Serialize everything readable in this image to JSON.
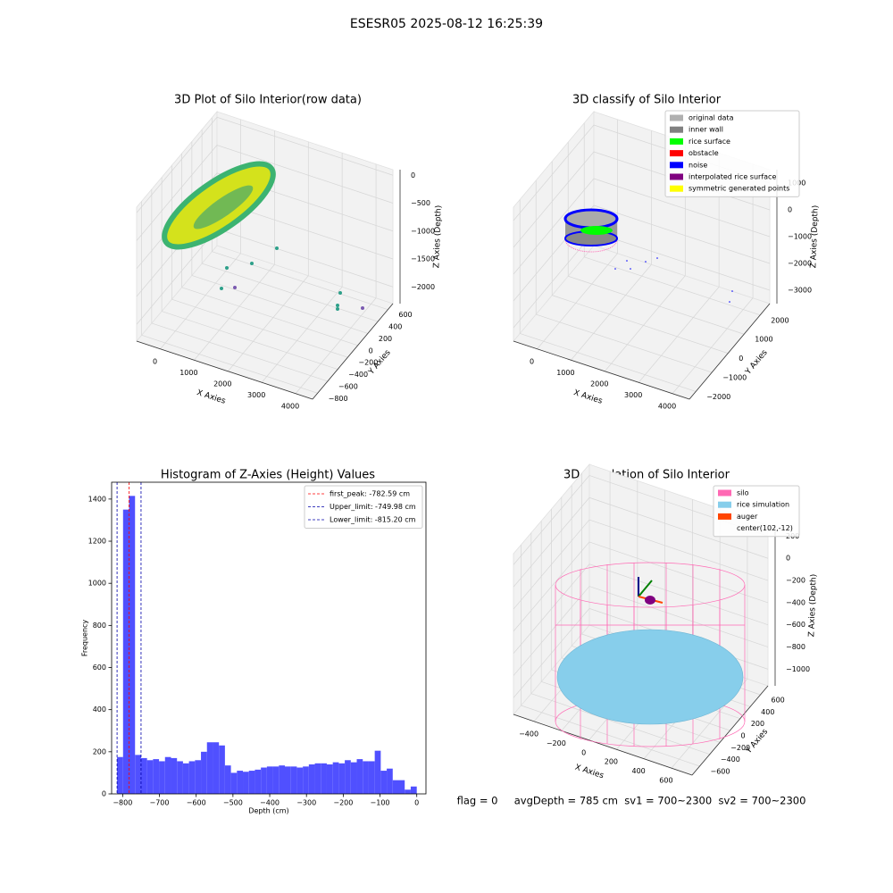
{
  "title": "ESESR05 2025-08-12 16:25:39",
  "footer": "flag = 0     avgDepth = 785 cm  sv1 = 700~2300  sv2 = 700~2300",
  "chart_data": [
    {
      "type": "scatter3d",
      "title": "3D Plot of Silo Interior(row data)",
      "xlabel": "X Axies",
      "ylabel": "Y Axies",
      "zlabel": "Z Axies (Depth)",
      "xlim": [
        -700,
        4500
      ],
      "ylim": [
        -900,
        700
      ],
      "zlim": [
        -2300,
        100
      ],
      "xticks": [
        0,
        1000,
        2000,
        3000,
        4000
      ],
      "yticks": [
        {
          "value": -800,
          "label": "−800"
        },
        {
          "value": -600,
          "label": "−600"
        },
        {
          "value": -400,
          "label": "−400"
        },
        {
          "value": -200,
          "label": "−200"
        },
        0,
        200,
        400,
        600
      ],
      "zticks": [
        0,
        {
          "value": -500,
          "label": "−500"
        },
        {
          "value": -1000,
          "label": "−1000"
        },
        {
          "value": -1500,
          "label": "−1500"
        },
        {
          "value": -2000,
          "label": "−2000"
        }
      ]
    },
    {
      "type": "scatter3d",
      "title": "3D classify of Silo Interior",
      "xlabel": "X Axies",
      "ylabel": "Y Axies",
      "zlabel": "Z Axies (Depth)",
      "xlim": [
        -700,
        4500
      ],
      "ylim": [
        -2400,
        2600
      ],
      "zlim": [
        -3500,
        1500
      ],
      "xticks": [
        0,
        1000,
        2000,
        3000,
        4000
      ],
      "yticks": [
        {
          "value": -2000,
          "label": "−2000"
        },
        {
          "value": -1000,
          "label": "−1000"
        },
        0,
        1000,
        2000
      ],
      "zticks": [
        1000,
        0,
        {
          "value": -1000,
          "label": "−1000"
        },
        {
          "value": -2000,
          "label": "−2000"
        },
        {
          "value": -3000,
          "label": "−3000"
        }
      ],
      "series": [
        {
          "name": "original data",
          "color": "#b0b0b0"
        },
        {
          "name": "inner wall",
          "color": "#808080"
        },
        {
          "name": "rice surface",
          "color": "#00ff00"
        },
        {
          "name": "obstacle",
          "color": "#ff0000"
        },
        {
          "name": "noise",
          "color": "#0000ff"
        },
        {
          "name": "interpolated rice surface",
          "color": "#800080"
        },
        {
          "name": "symmetric generated points",
          "color": "#ffff00"
        }
      ]
    },
    {
      "type": "histogram",
      "title": "Histogram of Z-Axies (Height) Values",
      "xlabel": "Depth (cm)",
      "ylabel": "Frequency",
      "color": "#5050ff",
      "xlim": [
        -830,
        25
      ],
      "ylim": [
        0,
        1480
      ],
      "xticks": [
        {
          "value": -800,
          "label": "−800"
        },
        {
          "value": -700,
          "label": "−700"
        },
        {
          "value": -600,
          "label": "−600"
        },
        {
          "value": -500,
          "label": "−500"
        },
        {
          "value": -400,
          "label": "−400"
        },
        {
          "value": -300,
          "label": "−300"
        },
        {
          "value": -200,
          "label": "−200"
        },
        {
          "value": -100,
          "label": "−100"
        },
        0
      ],
      "yticks": [
        0,
        200,
        400,
        600,
        800,
        1000,
        1200,
        1400
      ],
      "bins": [
        -815.2,
        -798.9,
        -782.6,
        -766.3,
        -750,
        -733.7,
        -717.4,
        -701.1,
        -684.8,
        -668.5,
        -652.2,
        -635.9,
        -619.6,
        -603.3,
        -587,
        -570.7,
        -554.4,
        -538.1,
        -521.8,
        -505.5,
        -489.2,
        -472.9,
        -456.6,
        -440.3,
        -424,
        -407.7,
        -391.4,
        -375.1,
        -358.8,
        -342.5,
        -326.2,
        -309.9,
        -293.6,
        -277.3,
        -261,
        -244.7,
        -228.4,
        -212.1,
        -195.8,
        -179.5,
        -163.2,
        -146.9,
        -130.6,
        -114.3,
        -98,
        -81.7,
        -65.4,
        -49.1,
        -32.8,
        -16.5,
        0
      ],
      "values": [
        175,
        1350,
        1415,
        185,
        170,
        160,
        165,
        155,
        175,
        170,
        155,
        145,
        155,
        160,
        200,
        245,
        245,
        230,
        135,
        100,
        110,
        105,
        110,
        115,
        125,
        130,
        130,
        135,
        130,
        130,
        125,
        130,
        140,
        145,
        145,
        140,
        150,
        145,
        160,
        150,
        165,
        155,
        155,
        205,
        110,
        120,
        65,
        65,
        20,
        35
      ],
      "vlines": [
        {
          "name": "first_peak: -782.59 cm",
          "value": -782.59,
          "color": "#ff0000"
        },
        {
          "name": "Upper_limit: -749.98 cm",
          "value": -749.98,
          "color": "#0000aa"
        },
        {
          "name": "Lower_limit: -815.20 cm",
          "value": -815.2,
          "color": "#0000aa"
        }
      ]
    },
    {
      "type": "scatter3d",
      "title": "3D simulation of Silo Interior",
      "xlabel": "X Axies",
      "ylabel": "Y Axies",
      "zlabel": "Z Axies (Depth)",
      "xlim": [
        -550,
        750
      ],
      "ylim": [
        -750,
        750
      ],
      "zlim": [
        -1150,
        300
      ],
      "xticks": [
        {
          "value": -400,
          "label": "−400"
        },
        {
          "value": -200,
          "label": "−200"
        },
        0,
        200,
        400,
        600
      ],
      "yticks": [
        {
          "value": -600,
          "label": "−600"
        },
        {
          "value": -400,
          "label": "−400"
        },
        {
          "value": -200,
          "label": "−200"
        },
        0,
        200,
        400,
        600
      ],
      "zticks": [
        200,
        0,
        {
          "value": -200,
          "label": "−200"
        },
        {
          "value": -400,
          "label": "−400"
        },
        {
          "value": -600,
          "label": "−600"
        },
        {
          "value": -800,
          "label": "−800"
        },
        {
          "value": -1000,
          "label": "−1000"
        }
      ],
      "series": [
        {
          "name": "silo",
          "color": "#ff69b4"
        },
        {
          "name": "rice simulation",
          "color": "#87ceeb"
        },
        {
          "name": "auger",
          "color": "#ff4500"
        },
        {
          "name": "center(102,-12)"
        }
      ]
    }
  ]
}
